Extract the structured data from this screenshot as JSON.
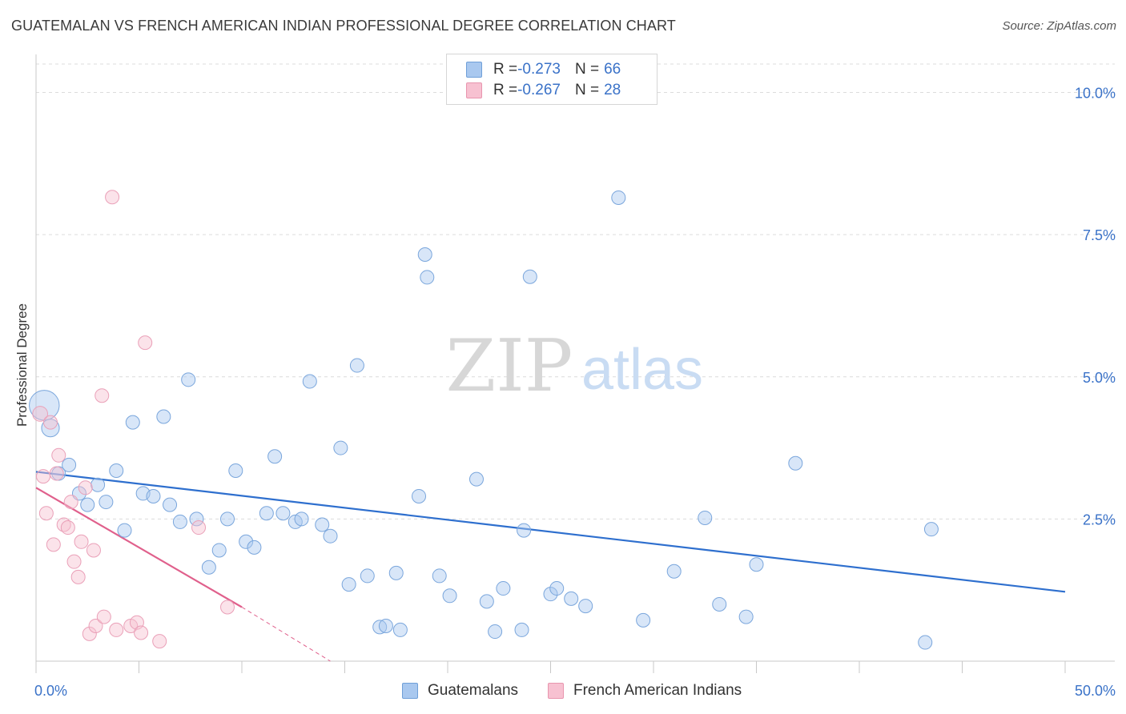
{
  "header": {
    "title": "GUATEMALAN VS FRENCH AMERICAN INDIAN PROFESSIONAL DEGREE CORRELATION CHART",
    "source": "Source: ZipAtlas.com"
  },
  "watermark": {
    "zip": "ZIP",
    "atlas": "atlas"
  },
  "legend": {
    "rows": [
      {
        "r_label": "R = ",
        "r_value": "-0.273",
        "n_label": "N = ",
        "n_value": "66",
        "color": "#a9c8ef",
        "border": "#6f9fd8"
      },
      {
        "r_label": "R = ",
        "r_value": "-0.267",
        "n_label": "N = ",
        "n_value": "28",
        "color": "#f7c1d1",
        "border": "#e895ae"
      }
    ]
  },
  "bottom_legend": [
    {
      "label": "Guatemalans",
      "color": "#a9c8ef",
      "border": "#6f9fd8"
    },
    {
      "label": "French American Indians",
      "color": "#f7c1d1",
      "border": "#e895ae"
    }
  ],
  "colors": {
    "blue_fill": "rgba(169,200,239,0.45)",
    "blue_stroke": "#7aa6dc",
    "blue_line": "#2e6fce",
    "pink_fill": "rgba(247,193,209,0.45)",
    "pink_stroke": "#eaa0b8",
    "pink_line": "#e0608c",
    "tick_label": "#3a72c8"
  },
  "chart_data": {
    "type": "scatter",
    "title": "GUATEMALAN VS FRENCH AMERICAN INDIAN PROFESSIONAL DEGREE CORRELATION CHART",
    "xlabel": "",
    "ylabel": "Professional Degree",
    "xlim": [
      0,
      50
    ],
    "ylim": [
      0,
      10.5
    ],
    "x_tick_labels": [
      {
        "value": 0,
        "label": "0.0%"
      },
      {
        "value": 50,
        "label": "50.0%"
      }
    ],
    "y_tick_labels": [
      {
        "value": 2.5,
        "label": "2.5%"
      },
      {
        "value": 5.0,
        "label": "5.0%"
      },
      {
        "value": 7.5,
        "label": "7.5%"
      },
      {
        "value": 10.0,
        "label": "10.0%"
      }
    ],
    "grid": "horizontal dashed",
    "series": [
      {
        "name": "Guatemalans",
        "r": -0.273,
        "n": 66,
        "trend": {
          "x0": 0,
          "y0": 3.33,
          "x1": 50,
          "y1": 1.22
        },
        "points": [
          {
            "x": 0.4,
            "y": 4.5,
            "s": 2.2
          },
          {
            "x": 0.7,
            "y": 4.1,
            "s": 1.3
          },
          {
            "x": 1.1,
            "y": 3.3,
            "s": 1
          },
          {
            "x": 1.6,
            "y": 3.45,
            "s": 1
          },
          {
            "x": 2.1,
            "y": 2.95,
            "s": 1
          },
          {
            "x": 2.5,
            "y": 2.75,
            "s": 1
          },
          {
            "x": 3.0,
            "y": 3.1,
            "s": 1
          },
          {
            "x": 3.4,
            "y": 2.8,
            "s": 1
          },
          {
            "x": 3.9,
            "y": 3.35,
            "s": 1
          },
          {
            "x": 4.3,
            "y": 2.3,
            "s": 1
          },
          {
            "x": 4.7,
            "y": 4.2,
            "s": 1
          },
          {
            "x": 5.2,
            "y": 2.95,
            "s": 1
          },
          {
            "x": 5.7,
            "y": 2.9,
            "s": 1
          },
          {
            "x": 6.2,
            "y": 4.3,
            "s": 1
          },
          {
            "x": 6.5,
            "y": 2.75,
            "s": 1
          },
          {
            "x": 7.0,
            "y": 2.45,
            "s": 1
          },
          {
            "x": 7.4,
            "y": 4.95,
            "s": 1
          },
          {
            "x": 7.8,
            "y": 2.5,
            "s": 1
          },
          {
            "x": 8.4,
            "y": 1.65,
            "s": 1
          },
          {
            "x": 8.9,
            "y": 1.95,
            "s": 1
          },
          {
            "x": 9.3,
            "y": 2.5,
            "s": 1
          },
          {
            "x": 9.7,
            "y": 3.35,
            "s": 1
          },
          {
            "x": 10.2,
            "y": 2.1,
            "s": 1
          },
          {
            "x": 10.6,
            "y": 2.0,
            "s": 1
          },
          {
            "x": 11.2,
            "y": 2.6,
            "s": 1
          },
          {
            "x": 11.6,
            "y": 3.6,
            "s": 1
          },
          {
            "x": 12.0,
            "y": 2.6,
            "s": 1
          },
          {
            "x": 12.6,
            "y": 2.45,
            "s": 1
          },
          {
            "x": 12.9,
            "y": 2.5,
            "s": 1
          },
          {
            "x": 13.3,
            "y": 4.92,
            "s": 1
          },
          {
            "x": 13.9,
            "y": 2.4,
            "s": 1
          },
          {
            "x": 14.3,
            "y": 2.2,
            "s": 1
          },
          {
            "x": 14.8,
            "y": 3.75,
            "s": 1
          },
          {
            "x": 15.2,
            "y": 1.35,
            "s": 1
          },
          {
            "x": 15.6,
            "y": 5.2,
            "s": 1
          },
          {
            "x": 16.1,
            "y": 1.5,
            "s": 1
          },
          {
            "x": 16.7,
            "y": 0.6,
            "s": 1
          },
          {
            "x": 17.0,
            "y": 0.62,
            "s": 1
          },
          {
            "x": 17.5,
            "y": 1.55,
            "s": 1
          },
          {
            "x": 17.7,
            "y": 0.55,
            "s": 1
          },
          {
            "x": 18.9,
            "y": 7.15,
            "s": 1
          },
          {
            "x": 18.6,
            "y": 2.9,
            "s": 1
          },
          {
            "x": 19.0,
            "y": 6.75,
            "s": 1
          },
          {
            "x": 19.6,
            "y": 1.5,
            "s": 1
          },
          {
            "x": 20.1,
            "y": 1.15,
            "s": 1
          },
          {
            "x": 21.4,
            "y": 3.2,
            "s": 1
          },
          {
            "x": 21.9,
            "y": 1.05,
            "s": 1
          },
          {
            "x": 22.3,
            "y": 0.52,
            "s": 1
          },
          {
            "x": 22.7,
            "y": 1.28,
            "s": 1
          },
          {
            "x": 23.6,
            "y": 0.55,
            "s": 1
          },
          {
            "x": 23.7,
            "y": 2.3,
            "s": 1
          },
          {
            "x": 24.0,
            "y": 6.76,
            "s": 1
          },
          {
            "x": 25.0,
            "y": 1.18,
            "s": 1
          },
          {
            "x": 25.3,
            "y": 1.28,
            "s": 1
          },
          {
            "x": 26.0,
            "y": 1.1,
            "s": 1
          },
          {
            "x": 26.7,
            "y": 0.97,
            "s": 1
          },
          {
            "x": 28.3,
            "y": 8.15,
            "s": 1
          },
          {
            "x": 29.5,
            "y": 0.72,
            "s": 1
          },
          {
            "x": 31.0,
            "y": 1.58,
            "s": 1
          },
          {
            "x": 32.5,
            "y": 2.52,
            "s": 1
          },
          {
            "x": 33.2,
            "y": 1.0,
            "s": 1
          },
          {
            "x": 34.5,
            "y": 0.78,
            "s": 1
          },
          {
            "x": 35.0,
            "y": 1.7,
            "s": 1
          },
          {
            "x": 36.9,
            "y": 3.48,
            "s": 1
          },
          {
            "x": 43.5,
            "y": 2.32,
            "s": 1
          },
          {
            "x": 43.2,
            "y": 0.33,
            "s": 1
          }
        ]
      },
      {
        "name": "French American Indians",
        "r": -0.267,
        "n": 28,
        "trend": {
          "x0": 0,
          "y0": 3.05,
          "x1": 10,
          "y1": 0.95,
          "dash_to_x": 14.3,
          "dash_to_y": 0.0
        },
        "points": [
          {
            "x": 0.2,
            "y": 4.35,
            "s": 1.1
          },
          {
            "x": 0.35,
            "y": 3.25,
            "s": 1
          },
          {
            "x": 0.5,
            "y": 2.6,
            "s": 1
          },
          {
            "x": 0.7,
            "y": 4.2,
            "s": 1
          },
          {
            "x": 0.85,
            "y": 2.05,
            "s": 1
          },
          {
            "x": 1.1,
            "y": 3.62,
            "s": 1
          },
          {
            "x": 1.0,
            "y": 3.3,
            "s": 1
          },
          {
            "x": 1.35,
            "y": 2.4,
            "s": 1
          },
          {
            "x": 1.55,
            "y": 2.35,
            "s": 1
          },
          {
            "x": 1.7,
            "y": 2.8,
            "s": 1
          },
          {
            "x": 1.85,
            "y": 1.75,
            "s": 1
          },
          {
            "x": 2.05,
            "y": 1.48,
            "s": 1
          },
          {
            "x": 2.2,
            "y": 2.1,
            "s": 1
          },
          {
            "x": 2.4,
            "y": 3.05,
            "s": 1
          },
          {
            "x": 2.6,
            "y": 0.48,
            "s": 1
          },
          {
            "x": 2.8,
            "y": 1.95,
            "s": 1
          },
          {
            "x": 2.9,
            "y": 0.62,
            "s": 1
          },
          {
            "x": 3.2,
            "y": 4.67,
            "s": 1
          },
          {
            "x": 3.3,
            "y": 0.78,
            "s": 1
          },
          {
            "x": 3.7,
            "y": 8.16,
            "s": 1
          },
          {
            "x": 3.9,
            "y": 0.55,
            "s": 1
          },
          {
            "x": 4.6,
            "y": 0.62,
            "s": 1
          },
          {
            "x": 4.9,
            "y": 0.68,
            "s": 1
          },
          {
            "x": 5.1,
            "y": 0.5,
            "s": 1
          },
          {
            "x": 5.3,
            "y": 5.6,
            "s": 1
          },
          {
            "x": 6.0,
            "y": 0.35,
            "s": 1
          },
          {
            "x": 7.9,
            "y": 2.35,
            "s": 1
          },
          {
            "x": 9.3,
            "y": 0.95,
            "s": 1
          }
        ]
      }
    ]
  }
}
